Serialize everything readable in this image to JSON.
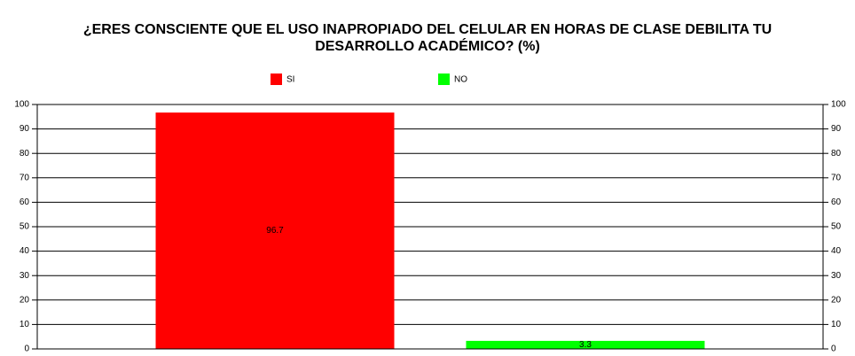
{
  "chart_data": {
    "type": "bar",
    "title": "¿ERES CONSCIENTE QUE EL USO INAPROPIADO DEL CELULAR EN HORAS DE CLASE DEBILITA TU DESARROLLO ACADÉMICO? (%)",
    "categories": [
      null
    ],
    "series": [
      {
        "name": "SI",
        "color": "#ff0000",
        "values": [
          96.7
        ]
      },
      {
        "name": "NO",
        "color": "#00ff00",
        "values": [
          3.3
        ]
      }
    ],
    "ylim": [
      0,
      100
    ],
    "yticks": [
      0,
      10,
      20,
      30,
      40,
      50,
      60,
      70,
      80,
      90,
      100
    ],
    "y2lim": [
      0,
      100
    ],
    "y2ticks": [
      0,
      10,
      20,
      30,
      40,
      50,
      60,
      70,
      80,
      90,
      100
    ],
    "grid": true,
    "legend": "top"
  }
}
